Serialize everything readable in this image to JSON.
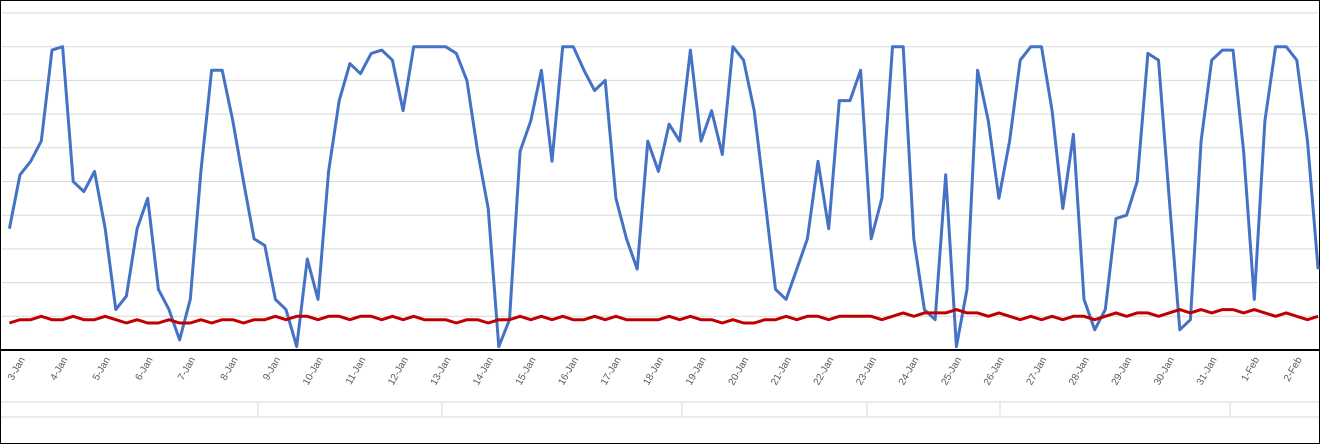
{
  "chart_data": {
    "type": "line",
    "categories": [
      null,
      "3-Jan",
      null,
      null,
      null,
      "4-Jan",
      null,
      null,
      null,
      "5-Jan",
      null,
      null,
      null,
      "6-Jan",
      null,
      null,
      null,
      "7-Jan",
      null,
      null,
      null,
      "8-Jan",
      null,
      null,
      null,
      "9-Jan",
      null,
      null,
      null,
      "10-Jan",
      null,
      null,
      null,
      "11-Jan",
      null,
      null,
      null,
      "12-Jan",
      null,
      null,
      null,
      "13-Jan",
      null,
      null,
      null,
      "14-Jan",
      null,
      null,
      null,
      "15-Jan",
      null,
      null,
      null,
      "16-Jan",
      null,
      null,
      null,
      "17-Jan",
      null,
      null,
      null,
      "18-Jan",
      null,
      null,
      null,
      "19-Jan",
      null,
      null,
      null,
      "20-Jan",
      null,
      null,
      null,
      "21-Jan",
      null,
      null,
      null,
      "22-Jan",
      null,
      null,
      null,
      "23-Jan",
      null,
      null,
      null,
      "24-Jan",
      null,
      null,
      null,
      "25-Jan",
      null,
      null,
      null,
      "26-Jan",
      null,
      null,
      null,
      "27-Jan",
      null,
      null,
      null,
      "28-Jan",
      null,
      null,
      null,
      "29-Jan",
      null,
      null,
      null,
      "30-Jan",
      null,
      null,
      null,
      "31-Jan",
      null,
      null,
      null,
      "1-Feb",
      null,
      null,
      null,
      "2-Feb",
      null,
      null
    ],
    "series": [
      {
        "color": "#4472c4",
        "values": [
          3.6,
          5.2,
          5.6,
          6.2,
          8.9,
          9.0,
          5.0,
          4.7,
          5.3,
          3.6,
          1.2,
          1.6,
          3.6,
          4.5,
          1.8,
          1.2,
          0.3,
          1.5,
          5.3,
          8.3,
          8.3,
          6.8,
          5.0,
          3.3,
          3.1,
          1.5,
          1.2,
          0.1,
          2.7,
          1.5,
          5.3,
          7.4,
          8.5,
          8.2,
          8.8,
          8.9,
          8.6,
          7.1,
          9.0,
          9.0,
          9.0,
          9.0,
          8.8,
          8.0,
          5.9,
          4.2,
          0.1,
          0.9,
          5.9,
          6.8,
          8.3,
          5.6,
          9.0,
          9.0,
          8.3,
          7.7,
          8.0,
          4.5,
          3.3,
          2.4,
          6.2,
          5.3,
          6.7,
          6.2,
          8.9,
          6.2,
          7.1,
          5.8,
          9.0,
          8.6,
          7.1,
          4.5,
          1.8,
          1.5,
          2.4,
          3.3,
          5.6,
          3.6,
          7.4,
          7.4,
          8.3,
          3.3,
          4.5,
          9.0,
          9.0,
          3.3,
          1.2,
          0.9,
          5.2,
          0.1,
          1.8,
          8.3,
          6.8,
          4.5,
          6.2,
          8.6,
          9.0,
          9.0,
          7.1,
          4.2,
          6.4,
          1.5,
          0.6,
          1.2,
          3.9,
          4.0,
          5.0,
          8.8,
          8.6,
          4.5,
          0.6,
          0.9,
          6.2,
          8.6,
          8.9,
          8.9,
          5.9,
          1.5,
          6.8,
          9.0,
          9.0,
          8.6,
          6.2,
          2.4
        ]
      },
      {
        "color": "#c00000",
        "values": [
          0.8,
          0.9,
          0.9,
          1.0,
          0.9,
          0.9,
          1.0,
          0.9,
          0.9,
          1.0,
          0.9,
          0.8,
          0.9,
          0.8,
          0.8,
          0.9,
          0.8,
          0.8,
          0.9,
          0.8,
          0.9,
          0.9,
          0.8,
          0.9,
          0.9,
          1.0,
          0.9,
          1.0,
          1.0,
          0.9,
          1.0,
          1.0,
          0.9,
          1.0,
          1.0,
          0.9,
          1.0,
          0.9,
          1.0,
          0.9,
          0.9,
          0.9,
          0.8,
          0.9,
          0.9,
          0.8,
          0.9,
          0.9,
          1.0,
          0.9,
          1.0,
          0.9,
          1.0,
          0.9,
          0.9,
          1.0,
          0.9,
          1.0,
          0.9,
          0.9,
          0.9,
          0.9,
          1.0,
          0.9,
          1.0,
          0.9,
          0.9,
          0.8,
          0.9,
          0.8,
          0.8,
          0.9,
          0.9,
          1.0,
          0.9,
          1.0,
          1.0,
          0.9,
          1.0,
          1.0,
          1.0,
          1.0,
          0.9,
          1.0,
          1.1,
          1.0,
          1.1,
          1.1,
          1.1,
          1.2,
          1.1,
          1.1,
          1.0,
          1.1,
          1.0,
          0.9,
          1.0,
          0.9,
          1.0,
          0.9,
          1.0,
          1.0,
          0.9,
          1.0,
          1.1,
          1.0,
          1.1,
          1.1,
          1.0,
          1.1,
          1.2,
          1.1,
          1.2,
          1.1,
          1.2,
          1.2,
          1.1,
          1.2,
          1.1,
          1.0,
          1.1,
          1.0,
          0.9,
          1.0
        ]
      }
    ],
    "ylim": [
      0,
      10
    ],
    "yticks": [
      0,
      1,
      2,
      3,
      4,
      5,
      6,
      7,
      8,
      9,
      10
    ],
    "grid": true
  }
}
